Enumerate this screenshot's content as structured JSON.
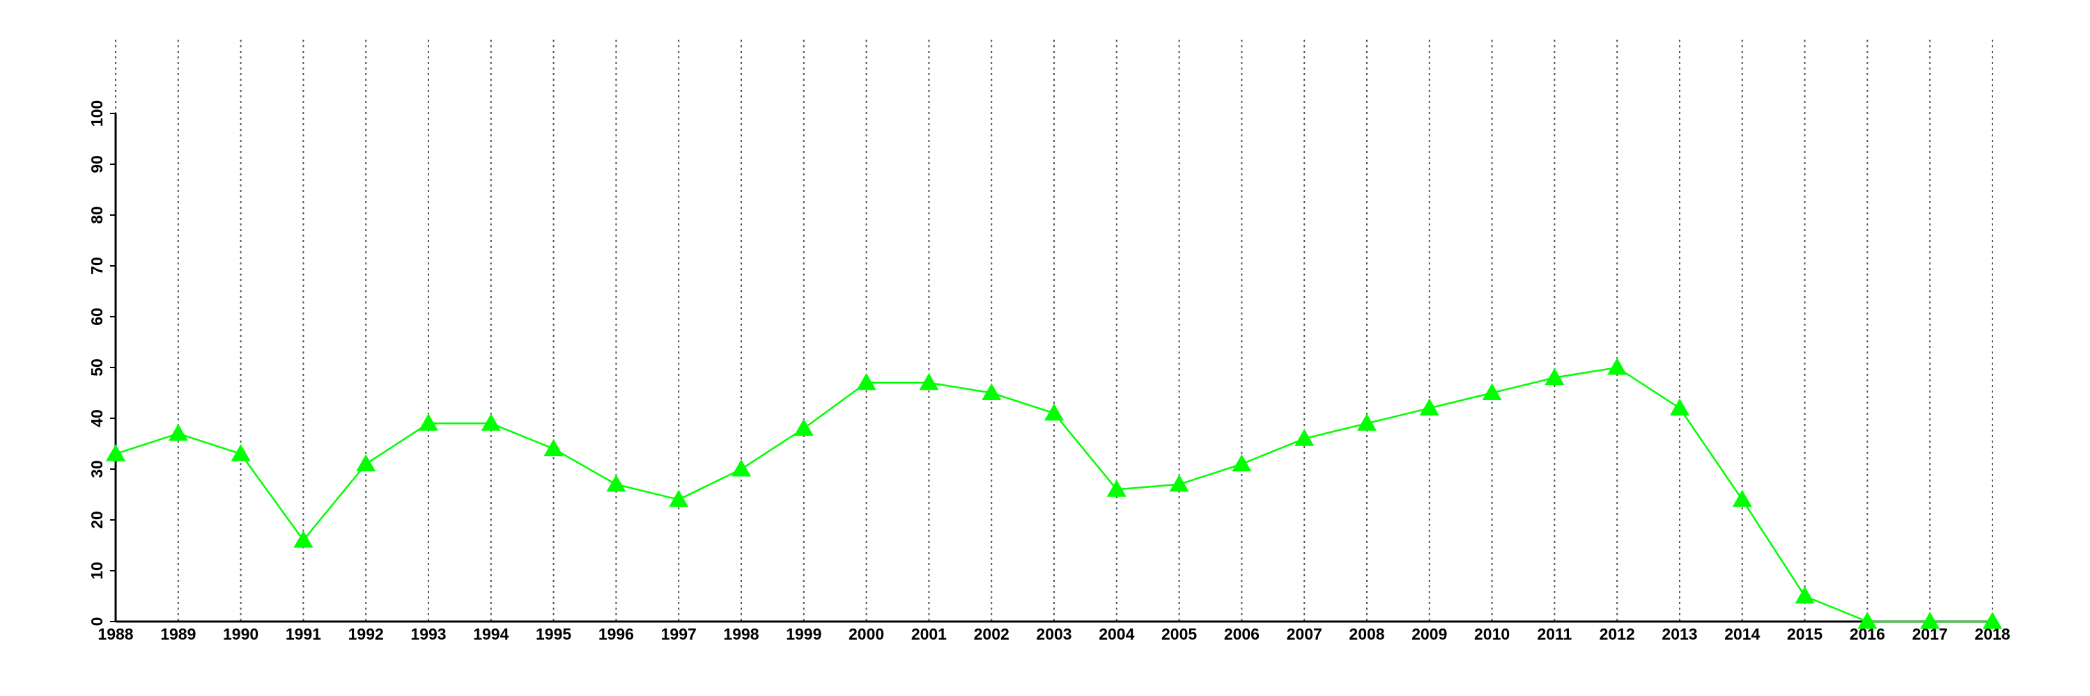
{
  "chart_data": {
    "type": "line",
    "x": [
      1988,
      1989,
      1990,
      1991,
      1992,
      1993,
      1994,
      1995,
      1996,
      1997,
      1998,
      1999,
      2000,
      2001,
      2002,
      2003,
      2004,
      2005,
      2006,
      2007,
      2008,
      2009,
      2010,
      2011,
      2012,
      2013,
      2014,
      2015,
      2016,
      2017,
      2018
    ],
    "values": [
      33,
      37,
      33,
      16,
      31,
      39,
      39,
      34,
      27,
      24,
      30,
      38,
      47,
      47,
      45,
      41,
      26,
      27,
      31,
      36,
      39,
      42,
      45,
      48,
      50,
      42,
      24,
      5,
      0,
      0,
      0
    ],
    "color": "#00ff00",
    "xlim": [
      1988,
      2018
    ],
    "xticks": [
      1988,
      1989,
      1990,
      1991,
      1992,
      1993,
      1994,
      1995,
      1996,
      1997,
      1998,
      1999,
      2000,
      2001,
      2002,
      2003,
      2004,
      2005,
      2006,
      2007,
      2008,
      2009,
      2010,
      2011,
      2012,
      2013,
      2014,
      2015,
      2016,
      2017,
      2018
    ],
    "ylim": [
      0,
      100
    ],
    "yticks": [
      0,
      10,
      20,
      30,
      40,
      50,
      60,
      70,
      80,
      90,
      100
    ],
    "grid": true
  }
}
